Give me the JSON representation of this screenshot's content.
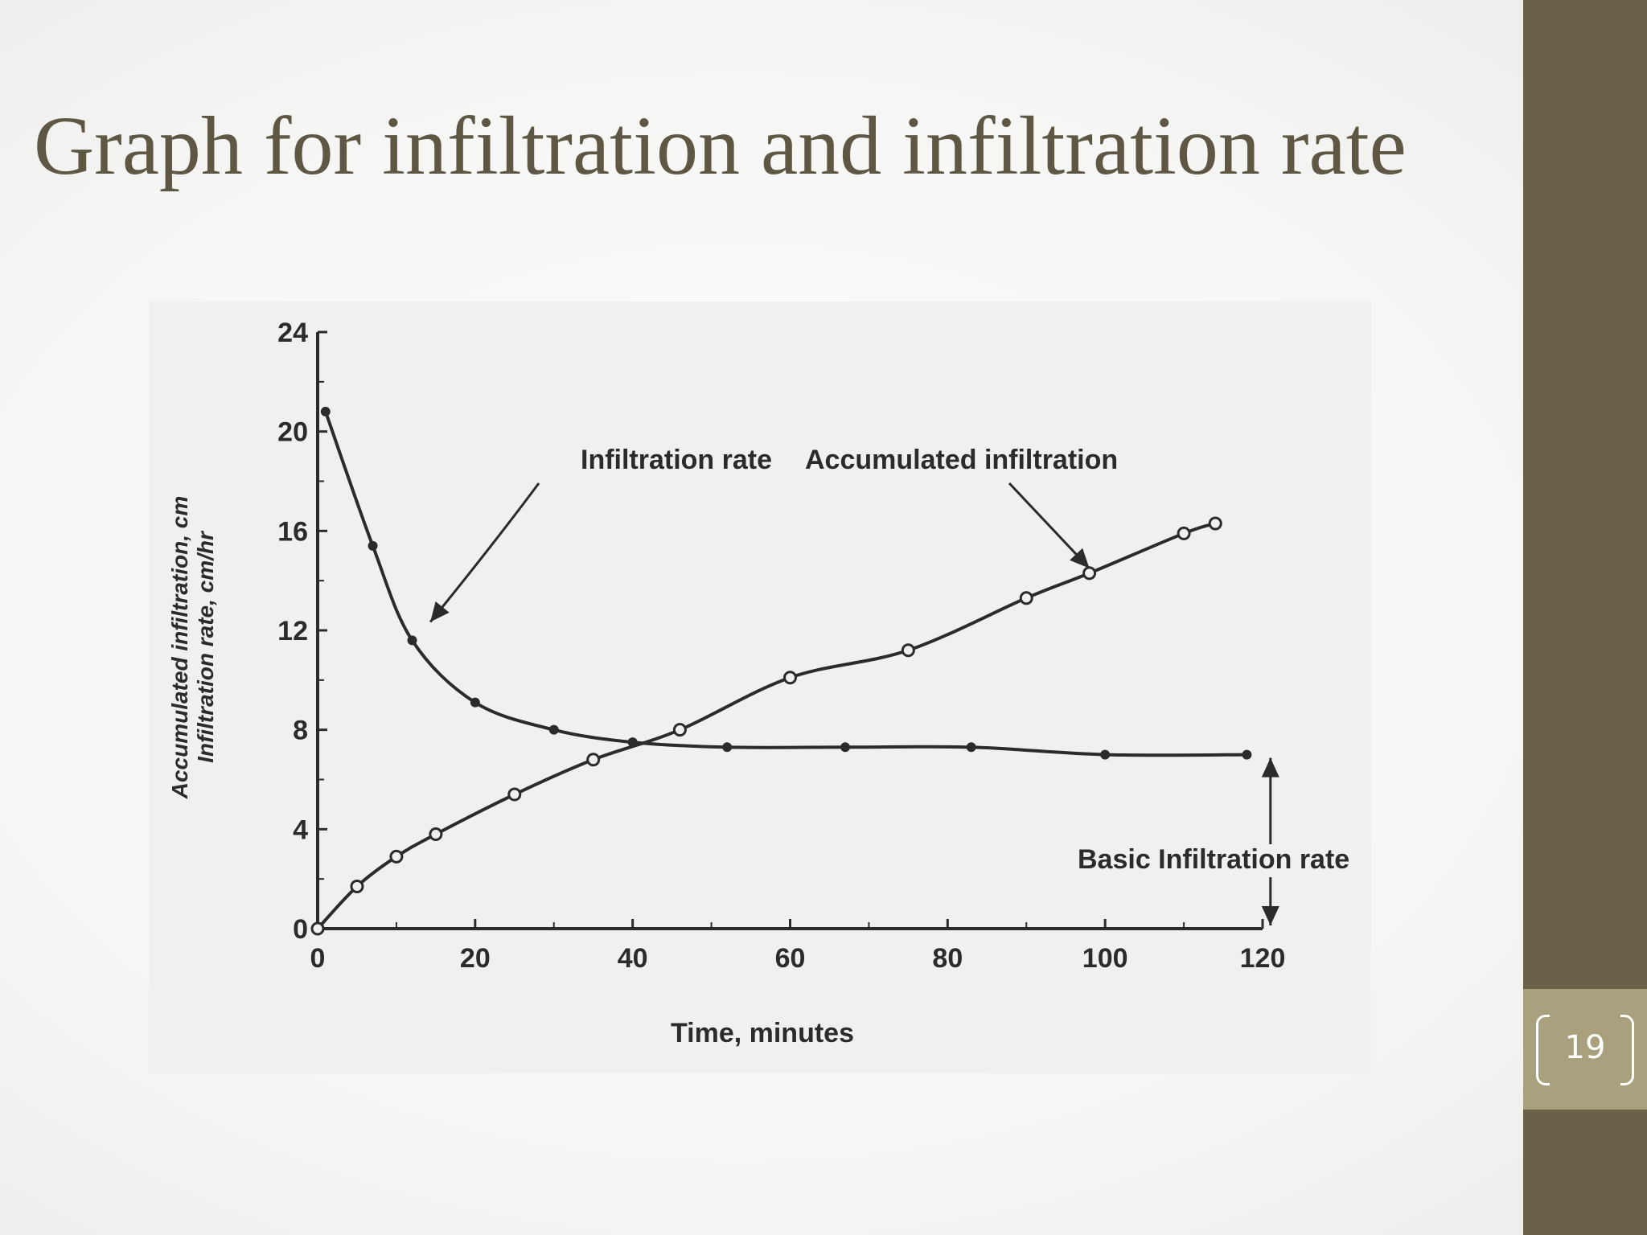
{
  "slide": {
    "title": "Graph for infiltration and infiltration rate",
    "page_number": "19",
    "colors": {
      "title": "#5e5744",
      "sidebar": "#6b6048",
      "page_box": "#a9a17d"
    }
  },
  "chart_data": {
    "type": "line",
    "xlabel": "Time, minutes",
    "ylabel_lines": [
      "Accumulated infiltration, cm",
      "Infiltration rate, cm/hr"
    ],
    "xlim": [
      0,
      120
    ],
    "ylim": [
      0,
      24
    ],
    "x_ticks": [
      "0",
      "20",
      "40",
      "60",
      "80",
      "100",
      "120"
    ],
    "y_ticks": [
      "0",
      "4",
      "8",
      "12",
      "16",
      "20",
      "24"
    ],
    "grid": false,
    "series": [
      {
        "name": "Infiltration rate",
        "marker": "filled-dot",
        "points": [
          [
            1,
            20.8
          ],
          [
            7,
            15.4
          ],
          [
            12,
            11.6
          ],
          [
            20,
            9.1
          ],
          [
            30,
            8.0
          ],
          [
            40,
            7.5
          ],
          [
            52,
            7.3
          ],
          [
            67,
            7.3
          ],
          [
            83,
            7.3
          ],
          [
            100,
            7.0
          ],
          [
            118,
            7.0
          ]
        ]
      },
      {
        "name": "Accumulated infiltration",
        "marker": "open-circle",
        "points": [
          [
            0,
            0
          ],
          [
            5,
            1.7
          ],
          [
            10,
            2.9
          ],
          [
            15,
            3.8
          ],
          [
            25,
            5.4
          ],
          [
            35,
            6.8
          ],
          [
            46,
            8.0
          ],
          [
            60,
            10.1
          ],
          [
            75,
            11.2
          ],
          [
            90,
            13.3
          ],
          [
            98,
            14.3
          ],
          [
            110,
            15.9
          ],
          [
            114,
            16.3
          ]
        ]
      }
    ],
    "annotations": [
      {
        "text": "Infiltration rate",
        "points_to": [
          14,
          12.5
        ]
      },
      {
        "text": "Accumulated infiltration",
        "points_to": [
          98,
          14.5
        ]
      },
      {
        "text": "Basic Infiltration rate",
        "marks_value": 7.0
      }
    ]
  }
}
